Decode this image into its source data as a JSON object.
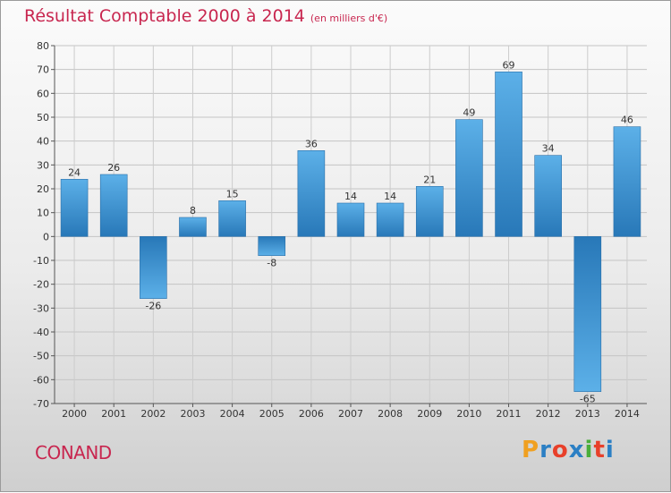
{
  "header": {
    "title": "Résultat Comptable 2000 à 2014",
    "unit": "(en milliers d'€)"
  },
  "commune": "CONAND",
  "logo": {
    "text": "Proxiti",
    "colors": [
      "#f0a020",
      "#2b7fc4",
      "#e8402a",
      "#2b7fc4",
      "#4aae3a",
      "#e8402a",
      "#2b7fc4"
    ]
  },
  "chart_data": {
    "type": "bar",
    "title": "Résultat Comptable 2000 à 2014",
    "ylabel": "en milliers d'€",
    "xlabel": "",
    "ylim": [
      -70,
      80
    ],
    "yticks": [
      -70,
      -60,
      -50,
      -40,
      -30,
      -20,
      -10,
      0,
      10,
      20,
      30,
      40,
      50,
      60,
      70,
      80
    ],
    "categories": [
      "2000",
      "2001",
      "2002",
      "2003",
      "2004",
      "2005",
      "2006",
      "2007",
      "2008",
      "2009",
      "2010",
      "2011",
      "2012",
      "2013",
      "2014"
    ],
    "values": [
      24,
      26,
      -26,
      8,
      15,
      -8,
      36,
      14,
      14,
      21,
      49,
      69,
      34,
      -65,
      46
    ],
    "grid": true,
    "bar_color_light": "#5aaee6",
    "bar_color_dark": "#2878b8"
  }
}
